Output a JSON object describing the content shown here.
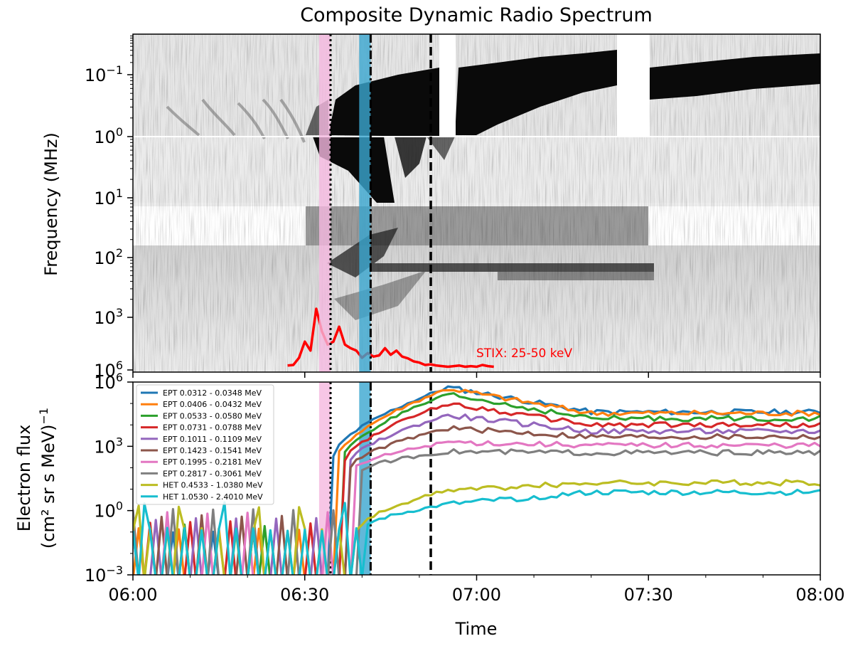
{
  "chart_data": [
    {
      "type": "heatmap",
      "title": "Composite Dynamic Radio Spectrum",
      "ylabel": "Frequency (MHz)",
      "y_scale": "log",
      "y_inverted": true,
      "y_ticks": [
        {
          "base": "10",
          "exp": "−1"
        },
        {
          "base": "10",
          "exp": "0"
        },
        {
          "base": "10",
          "exp": "1"
        },
        {
          "base": "10",
          "exp": "2"
        },
        {
          "base": "10",
          "exp": "3"
        },
        {
          "base": "10",
          "exp": "6"
        }
      ],
      "colormap": "greys",
      "grid": false,
      "overlay": {
        "type": "line",
        "label": "STIX: 25-50 keV",
        "color": "#ff0000",
        "x_minutes": [
          27,
          28,
          29,
          30,
          31,
          32,
          33,
          34,
          35,
          36,
          37,
          38,
          39,
          40,
          41,
          42,
          43,
          44,
          45,
          46,
          47,
          48,
          49,
          50,
          51,
          52,
          53,
          54,
          55,
          56,
          57,
          58,
          59,
          60,
          61,
          62,
          63
        ],
        "level": [
          0.05,
          0.06,
          0.18,
          0.45,
          0.3,
          1.0,
          0.62,
          0.4,
          0.45,
          0.7,
          0.4,
          0.34,
          0.3,
          0.18,
          0.26,
          0.2,
          0.22,
          0.34,
          0.23,
          0.3,
          0.2,
          0.17,
          0.12,
          0.1,
          0.06,
          0.07,
          0.05,
          0.04,
          0.03,
          0.04,
          0.05,
          0.03,
          0.04,
          0.03,
          0.06,
          0.04,
          0.03
        ]
      }
    },
    {
      "type": "line",
      "xlabel": "Time",
      "ylabel_line1": "Electron flux",
      "ylabel_line2": "(cm² sr s MeV)",
      "ylabel_sup": "−1",
      "y_scale": "log",
      "ylim_exp": [
        -3,
        6
      ],
      "y_ticks": [
        {
          "base": "10",
          "exp": "6"
        },
        {
          "base": "10",
          "exp": "3"
        },
        {
          "base": "10",
          "exp": "0"
        },
        {
          "base": "10",
          "exp": "−3"
        }
      ],
      "x_ticks": [
        "06:00",
        "06:30",
        "07:00",
        "07:30",
        "08:00"
      ],
      "xlim_minutes": [
        0,
        120
      ],
      "legend_position": "top-left",
      "series": [
        {
          "name": "EPT 0.0312 - 0.0348 MeV",
          "color": "#1f77b4",
          "peak": 5.75,
          "plateau": 4.6
        },
        {
          "name": "EPT 0.0406 - 0.0432 MeV",
          "color": "#ff7f0e",
          "peak": 5.7,
          "plateau": 4.55
        },
        {
          "name": "EPT 0.0533 - 0.0580 MeV",
          "color": "#2ca02c",
          "peak": 5.4,
          "plateau": 4.3
        },
        {
          "name": "EPT 0.0731 - 0.0788 MeV",
          "color": "#d62728",
          "peak": 5.0,
          "plateau": 4.0
        },
        {
          "name": "EPT 0.1011 - 0.1109 MeV",
          "color": "#9467bd",
          "peak": 4.45,
          "plateau": 3.7
        },
        {
          "name": "EPT 0.1423 - 0.1541 MeV",
          "color": "#8c564b",
          "peak": 3.85,
          "plateau": 3.45
        },
        {
          "name": "EPT 0.1995 - 0.2181 MeV",
          "color": "#e377c2",
          "peak": 3.2,
          "plateau": 3.05
        },
        {
          "name": "EPT 0.2817 - 0.3061 MeV",
          "color": "#7f7f7f",
          "peak": 2.75,
          "plateau": 2.7
        },
        {
          "name": "HET 0.4533 - 1.0380 MeV",
          "color": "#bcbd22",
          "peak": 0.95,
          "plateau": 1.3
        },
        {
          "name": "HET 1.0530 - 2.4010 MeV",
          "color": "#17becf",
          "peak": 0.3,
          "plateau": 0.85
        }
      ]
    }
  ],
  "markers": {
    "pink_band_minutes": [
      32.5,
      34.5
    ],
    "blue_band_minutes": [
      39.5,
      41.5
    ],
    "pink_band_color": "#f5b8e0",
    "blue_band_color": "#3aa6cf",
    "dotted_line_minute": 34.5,
    "dashdot_line_minute": 41.5,
    "dashed_line_minute": 52.0
  }
}
